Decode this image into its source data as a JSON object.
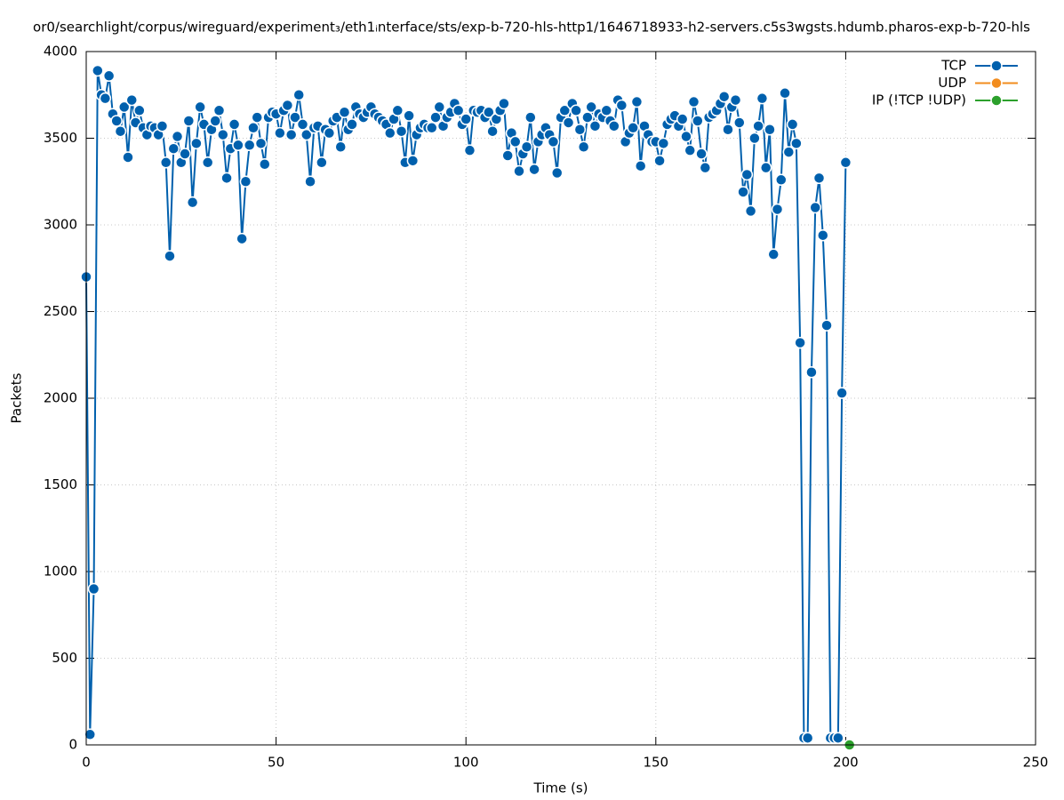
{
  "chart_data": {
    "type": "line",
    "title": "or0/searchlight/corpus/wireguard/experiment₃/eth1ᵢnterface/sts/exp-b-720-hls-http1/1646718933-h2-servers.c5s3wgsts.hdumb.pharos-exp-b-720-hls",
    "xlabel": "Time (s)",
    "ylabel": "Packets",
    "xlim": [
      0,
      250
    ],
    "xticks": [
      0,
      50,
      100,
      150,
      200,
      250
    ],
    "ylim": [
      0,
      4000
    ],
    "yticks": [
      0,
      500,
      1000,
      1500,
      2000,
      2500,
      3000,
      3500,
      4000
    ],
    "grid": true,
    "legend": "top-right",
    "series": [
      {
        "name": "TCP",
        "color": "#0060ad",
        "x": [
          0,
          1,
          2,
          3,
          4,
          5,
          6,
          7,
          8,
          9,
          10,
          11,
          12,
          13,
          14,
          15,
          16,
          17,
          18,
          19,
          20,
          21,
          22,
          23,
          24,
          25,
          26,
          27,
          28,
          29,
          30,
          31,
          32,
          33,
          34,
          35,
          36,
          37,
          38,
          39,
          40,
          41,
          42,
          43,
          44,
          45,
          46,
          47,
          48,
          49,
          50,
          51,
          52,
          53,
          54,
          55,
          56,
          57,
          58,
          59,
          60,
          61,
          62,
          63,
          64,
          65,
          66,
          67,
          68,
          69,
          70,
          71,
          72,
          73,
          74,
          75,
          76,
          77,
          78,
          79,
          80,
          81,
          82,
          83,
          84,
          85,
          86,
          87,
          88,
          89,
          90,
          91,
          92,
          93,
          94,
          95,
          96,
          97,
          98,
          99,
          100,
          101,
          102,
          103,
          104,
          105,
          106,
          107,
          108,
          109,
          110,
          111,
          112,
          113,
          114,
          115,
          116,
          117,
          118,
          119,
          120,
          121,
          122,
          123,
          124,
          125,
          126,
          127,
          128,
          129,
          130,
          131,
          132,
          133,
          134,
          135,
          136,
          137,
          138,
          139,
          140,
          141,
          142,
          143,
          144,
          145,
          146,
          147,
          148,
          149,
          150,
          151,
          152,
          153,
          154,
          155,
          156,
          157,
          158,
          159,
          160,
          161,
          162,
          163,
          164,
          165,
          166,
          167,
          168,
          169,
          170,
          171,
          172,
          173,
          174,
          175,
          176,
          177,
          178,
          179,
          180,
          181,
          182,
          183,
          184,
          185,
          186,
          187,
          188,
          189,
          190,
          191,
          192,
          193,
          194,
          195,
          196,
          197,
          198,
          199,
          200
        ],
        "values": [
          2700,
          60,
          900,
          3890,
          3750,
          3730,
          3860,
          3640,
          3600,
          3540,
          3680,
          3390,
          3720,
          3590,
          3660,
          3560,
          3520,
          3570,
          3560,
          3520,
          3570,
          3360,
          2820,
          3440,
          3510,
          3360,
          3410,
          3600,
          3130,
          3470,
          3680,
          3580,
          3360,
          3550,
          3600,
          3660,
          3520,
          3270,
          3440,
          3580,
          3460,
          2920,
          3250,
          3460,
          3560,
          3620,
          3470,
          3350,
          3620,
          3650,
          3640,
          3530,
          3660,
          3690,
          3520,
          3620,
          3750,
          3580,
          3520,
          3250,
          3560,
          3570,
          3360,
          3550,
          3530,
          3600,
          3620,
          3450,
          3650,
          3550,
          3580,
          3680,
          3640,
          3620,
          3650,
          3680,
          3640,
          3620,
          3600,
          3580,
          3530,
          3610,
          3660,
          3540,
          3360,
          3630,
          3370,
          3520,
          3560,
          3580,
          3560,
          3560,
          3620,
          3680,
          3570,
          3620,
          3650,
          3700,
          3660,
          3580,
          3610,
          3430,
          3660,
          3650,
          3660,
          3620,
          3650,
          3540,
          3610,
          3660,
          3700,
          3400,
          3530,
          3480,
          3310,
          3410,
          3450,
          3620,
          3320,
          3480,
          3520,
          3560,
          3520,
          3480,
          3300,
          3620,
          3660,
          3590,
          3700,
          3660,
          3550,
          3450,
          3620,
          3680,
          3570,
          3640,
          3620,
          3660,
          3600,
          3570,
          3720,
          3690,
          3480,
          3530,
          3560,
          3710,
          3340,
          3570,
          3520,
          3480,
          3480,
          3370,
          3470,
          3580,
          3610,
          3630,
          3570,
          3610,
          3510,
          3430,
          3710,
          3600,
          3410,
          3330,
          3620,
          3640,
          3660,
          3700,
          3740,
          3550,
          3680,
          3720,
          3590,
          3190,
          3290,
          3080,
          3500,
          3570,
          3730,
          3330,
          3550,
          2830,
          3090,
          3260,
          3760,
          3420,
          3580,
          3470,
          2320,
          40,
          40,
          2150,
          3100,
          3270,
          2940,
          2420,
          40,
          40,
          40,
          2030,
          3360
        ]
      },
      {
        "name": "UDP",
        "color": "#f28c1e",
        "x": [
          201
        ],
        "values": [
          0
        ]
      },
      {
        "name": "IP (!TCP  !UDP)",
        "color": "#2ca02c",
        "x": [
          201
        ],
        "values": [
          0
        ]
      }
    ]
  }
}
